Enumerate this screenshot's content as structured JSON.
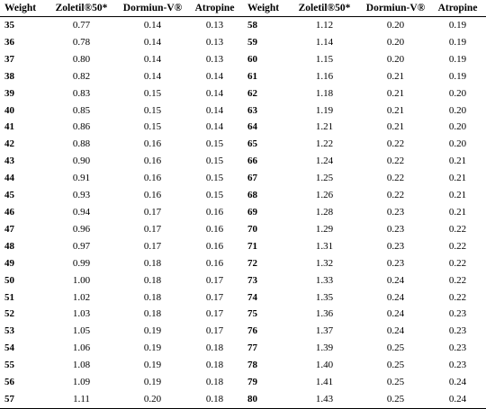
{
  "table": {
    "headers": [
      "Weight",
      "Zoletil®50*",
      "Dormiun-V®",
      "Atropine",
      "Weight",
      "Zoletil®50*",
      "Dormiun-V®",
      "Atropine"
    ],
    "rows": [
      [
        "35",
        "0.77",
        "0.14",
        "0.13",
        "58",
        "1.12",
        "0.20",
        "0.19"
      ],
      [
        "36",
        "0.78",
        "0.14",
        "0.13",
        "59",
        "1.14",
        "0.20",
        "0.19"
      ],
      [
        "37",
        "0.80",
        "0.14",
        "0.13",
        "60",
        "1.15",
        "0.20",
        "0.19"
      ],
      [
        "38",
        "0.82",
        "0.14",
        "0.14",
        "61",
        "1.16",
        "0.21",
        "0.19"
      ],
      [
        "39",
        "0.83",
        "0.15",
        "0.14",
        "62",
        "1.18",
        "0.21",
        "0.20"
      ],
      [
        "40",
        "0.85",
        "0.15",
        "0.14",
        "63",
        "1.19",
        "0.21",
        "0.20"
      ],
      [
        "41",
        "0.86",
        "0.15",
        "0.14",
        "64",
        "1.21",
        "0.21",
        "0.20"
      ],
      [
        "42",
        "0.88",
        "0.16",
        "0.15",
        "65",
        "1.22",
        "0.22",
        "0.20"
      ],
      [
        "43",
        "0.90",
        "0.16",
        "0.15",
        "66",
        "1.24",
        "0.22",
        "0.21"
      ],
      [
        "44",
        "0.91",
        "0.16",
        "0.15",
        "67",
        "1.25",
        "0.22",
        "0.21"
      ],
      [
        "45",
        "0.93",
        "0.16",
        "0.15",
        "68",
        "1.26",
        "0.22",
        "0.21"
      ],
      [
        "46",
        "0.94",
        "0.17",
        "0.16",
        "69",
        "1.28",
        "0.23",
        "0.21"
      ],
      [
        "47",
        "0.96",
        "0.17",
        "0.16",
        "70",
        "1.29",
        "0.23",
        "0.22"
      ],
      [
        "48",
        "0.97",
        "0.17",
        "0.16",
        "71",
        "1.31",
        "0.23",
        "0.22"
      ],
      [
        "49",
        "0.99",
        "0.18",
        "0.16",
        "72",
        "1.32",
        "0.23",
        "0.22"
      ],
      [
        "50",
        "1.00",
        "0.18",
        "0.17",
        "73",
        "1.33",
        "0.24",
        "0.22"
      ],
      [
        "51",
        "1.02",
        "0.18",
        "0.17",
        "74",
        "1.35",
        "0.24",
        "0.22"
      ],
      [
        "52",
        "1.03",
        "0.18",
        "0.17",
        "75",
        "1.36",
        "0.24",
        "0.23"
      ],
      [
        "53",
        "1.05",
        "0.19",
        "0.17",
        "76",
        "1.37",
        "0.24",
        "0.23"
      ],
      [
        "54",
        "1.06",
        "0.19",
        "0.18",
        "77",
        "1.39",
        "0.25",
        "0.23"
      ],
      [
        "55",
        "1.08",
        "0.19",
        "0.18",
        "78",
        "1.40",
        "0.25",
        "0.23"
      ],
      [
        "56",
        "1.09",
        "0.19",
        "0.18",
        "79",
        "1.41",
        "0.25",
        "0.24"
      ],
      [
        "57",
        "1.11",
        "0.20",
        "0.18",
        "80",
        "1.43",
        "0.25",
        "0.24"
      ]
    ]
  }
}
